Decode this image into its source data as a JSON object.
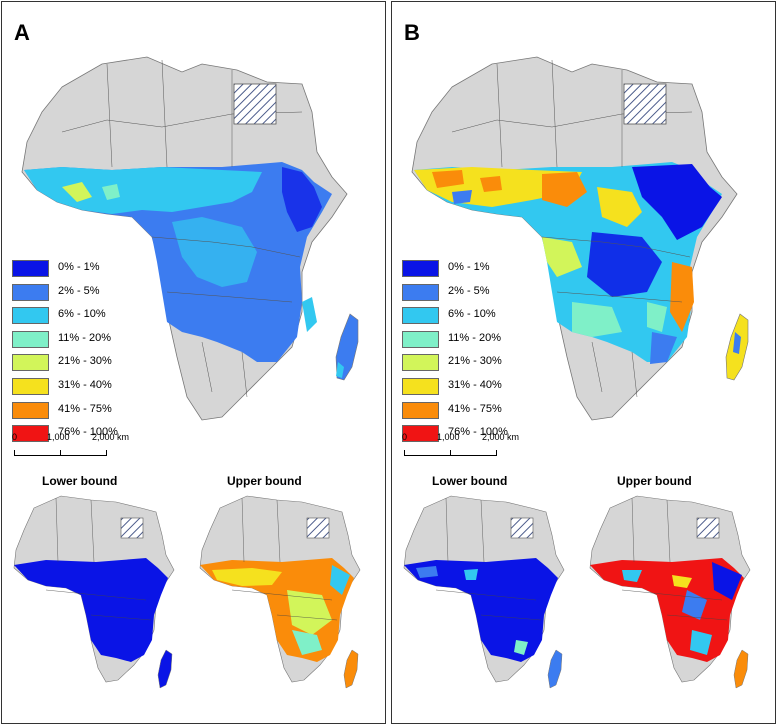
{
  "panels": [
    {
      "letter": "A",
      "legend": [
        "0% - 1%",
        "2% - 5%",
        "6% - 10%",
        "11% - 20%",
        "21% - 30%",
        "31% - 40%",
        "41% - 75%",
        "76% - 100%"
      ],
      "scale": {
        "zero": "0",
        "mid": "1,000",
        "max": "2,000 km"
      },
      "lower_title": "Lower bound",
      "upper_title": "Upper bound"
    },
    {
      "letter": "B",
      "legend": [
        "0% - 1%",
        "2% - 5%",
        "6% - 10%",
        "11% - 20%",
        "21% - 30%",
        "31% - 40%",
        "41% - 75%",
        "76% - 100%"
      ],
      "scale": {
        "zero": "0",
        "mid": "1,000",
        "max": "2,000 km"
      },
      "lower_title": "Lower bound",
      "upper_title": "Upper bound"
    }
  ],
  "legend_colors": [
    "#0a14e6",
    "#3c7cf0",
    "#32c8f0",
    "#7ff0c8",
    "#d2f55a",
    "#f5e11e",
    "#fa8c0a",
    "#f01414"
  ],
  "land_colors": {
    "no_data": "#d6d6d6",
    "border": "#777777",
    "hatch": "#4a5a8a"
  }
}
